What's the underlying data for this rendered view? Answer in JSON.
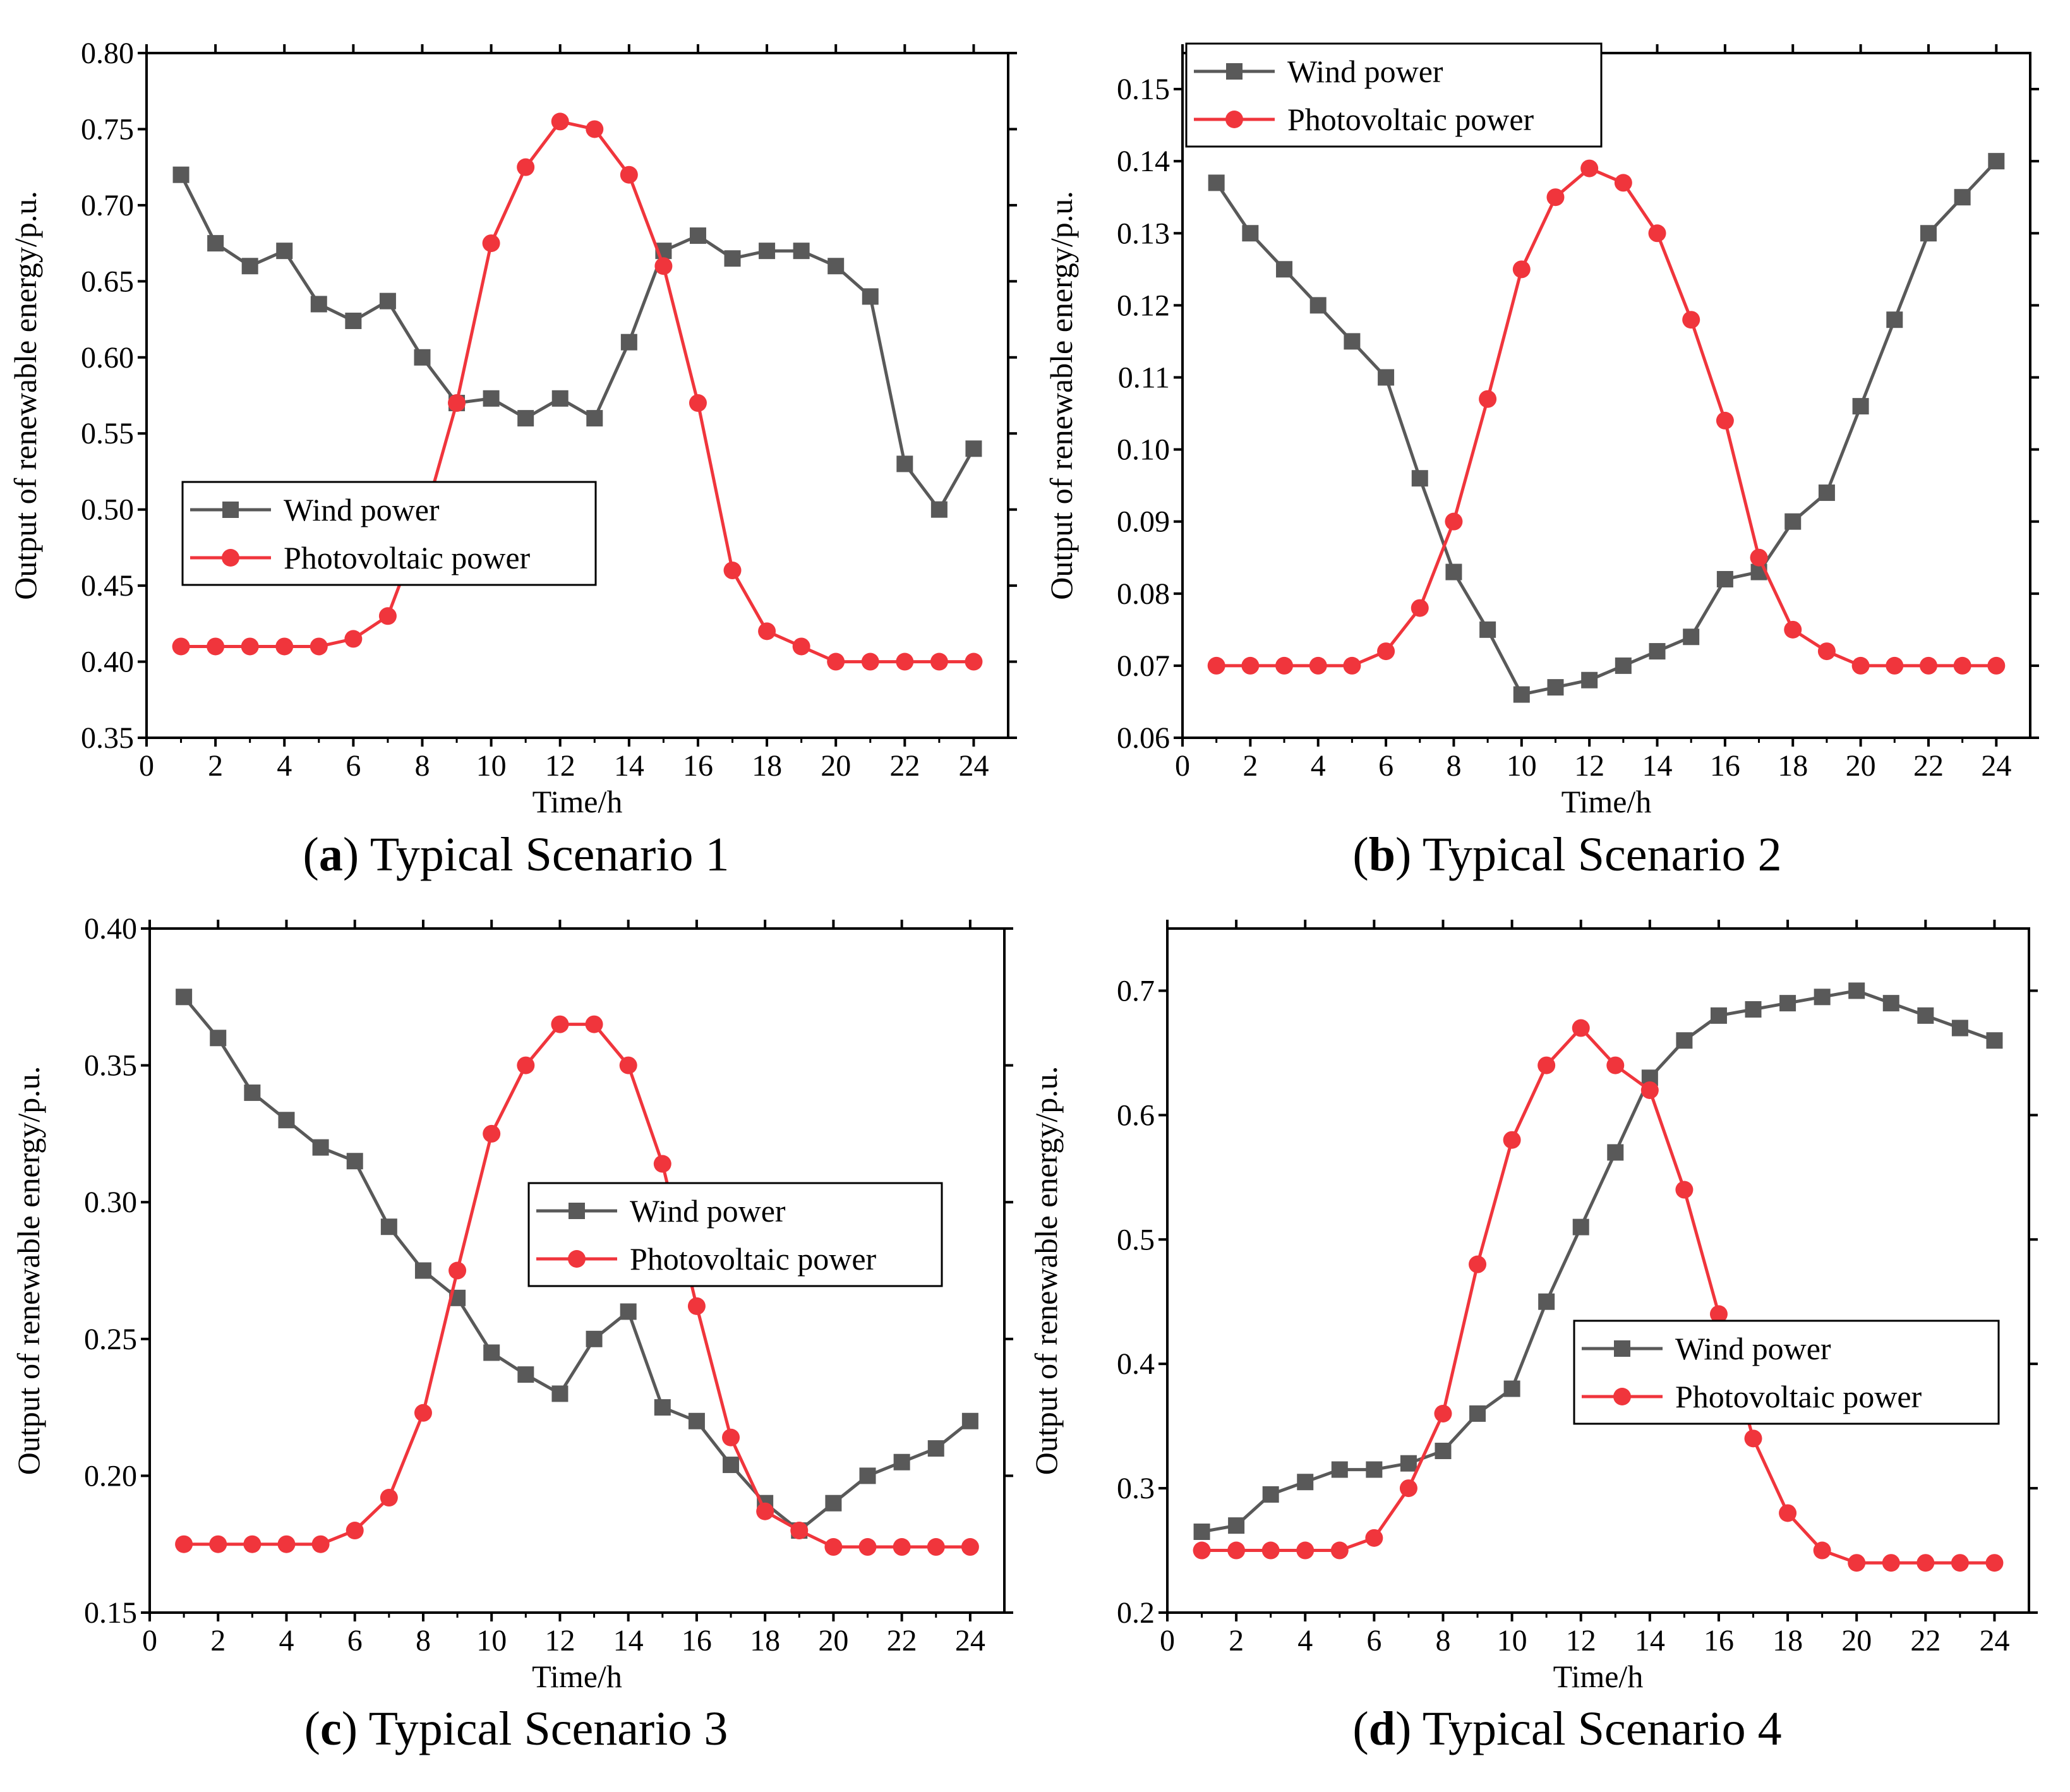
{
  "colors": {
    "wind": "#595959",
    "pv": "#f0353c",
    "axis": "#000000"
  },
  "chart_data": [
    {
      "type": "line",
      "caption_letter": "a",
      "caption_text": " Typical Scenario 1",
      "xlabel": "Time/h",
      "ylabel": "Output of renewable energy/p.u.",
      "xlim": [
        0,
        25
      ],
      "ylim": [
        0.35,
        0.8
      ],
      "xticks": [
        0,
        2,
        4,
        6,
        8,
        10,
        12,
        14,
        16,
        18,
        20,
        22,
        24
      ],
      "yticks": [
        "0.35",
        "0.40",
        "0.45",
        "0.50",
        "0.55",
        "0.60",
        "0.65",
        "0.70",
        "0.75",
        "0.80"
      ],
      "legend_position": "middle-left",
      "x": [
        1,
        2,
        3,
        4,
        5,
        6,
        7,
        8,
        9,
        10,
        11,
        12,
        13,
        14,
        15,
        16,
        17,
        18,
        19,
        20,
        21,
        22,
        23,
        24
      ],
      "series": [
        {
          "name": "Wind power",
          "color": "#595959",
          "marker": "square",
          "values": [
            0.72,
            0.675,
            0.66,
            0.67,
            0.635,
            0.624,
            0.637,
            0.6,
            0.57,
            0.573,
            0.56,
            0.573,
            0.56,
            0.61,
            0.67,
            0.68,
            0.665,
            0.67,
            0.67,
            0.66,
            0.64,
            0.53,
            0.5,
            0.54
          ]
        },
        {
          "name": "Photovoltaic power",
          "color": "#f0353c",
          "marker": "circle",
          "values": [
            0.41,
            0.41,
            0.41,
            0.41,
            0.41,
            0.415,
            0.43,
            0.49,
            0.57,
            0.675,
            0.725,
            0.755,
            0.75,
            0.72,
            0.66,
            0.57,
            0.46,
            0.42,
            0.41,
            0.4,
            0.4,
            0.4,
            0.4,
            0.4
          ]
        }
      ]
    },
    {
      "type": "line",
      "caption_letter": "b",
      "caption_text": " Typical Scenario 2",
      "xlabel": "Time/h",
      "ylabel": "Output of renewable energy/p.u.",
      "xlim": [
        0,
        25
      ],
      "ylim": [
        0.06,
        0.155
      ],
      "xticks": [
        0,
        2,
        4,
        6,
        8,
        10,
        12,
        14,
        16,
        18,
        20,
        22,
        24
      ],
      "yticks": [
        "0.06",
        "0.07",
        "0.08",
        "0.09",
        "0.10",
        "0.11",
        "0.12",
        "0.13",
        "0.14",
        "0.15"
      ],
      "legend_position": "top-left",
      "x": [
        1,
        2,
        3,
        4,
        5,
        6,
        7,
        8,
        9,
        10,
        11,
        12,
        13,
        14,
        15,
        16,
        17,
        18,
        19,
        20,
        21,
        22,
        23,
        24
      ],
      "series": [
        {
          "name": "Wind power",
          "color": "#595959",
          "marker": "square",
          "values": [
            0.137,
            0.13,
            0.125,
            0.12,
            0.115,
            0.11,
            0.096,
            0.083,
            0.075,
            0.066,
            0.067,
            0.068,
            0.07,
            0.072,
            0.074,
            0.082,
            0.083,
            0.09,
            0.094,
            0.106,
            0.118,
            0.13,
            0.135,
            0.14
          ]
        },
        {
          "name": "Photovoltaic power",
          "color": "#f0353c",
          "marker": "circle",
          "values": [
            0.07,
            0.07,
            0.07,
            0.07,
            0.07,
            0.072,
            0.078,
            0.09,
            0.107,
            0.125,
            0.135,
            0.139,
            0.137,
            0.13,
            0.118,
            0.104,
            0.085,
            0.075,
            0.072,
            0.07,
            0.07,
            0.07,
            0.07,
            0.07
          ]
        }
      ]
    },
    {
      "type": "line",
      "caption_letter": "c",
      "caption_text": " Typical Scenario 3",
      "xlabel": "Time/h",
      "ylabel": "Output of renewable energy/p.u.",
      "xlim": [
        0,
        25
      ],
      "ylim": [
        0.15,
        0.4
      ],
      "xticks": [
        0,
        2,
        4,
        6,
        8,
        10,
        12,
        14,
        16,
        18,
        20,
        22,
        24
      ],
      "yticks": [
        "0.15",
        "0.20",
        "0.25",
        "0.30",
        "0.35",
        "0.40"
      ],
      "legend_position": "center-right",
      "x": [
        1,
        2,
        3,
        4,
        5,
        6,
        7,
        8,
        9,
        10,
        11,
        12,
        13,
        14,
        15,
        16,
        17,
        18,
        19,
        20,
        21,
        22,
        23,
        24
      ],
      "series": [
        {
          "name": "Wind power",
          "color": "#595959",
          "marker": "square",
          "values": [
            0.375,
            0.36,
            0.34,
            0.33,
            0.32,
            0.315,
            0.291,
            0.275,
            0.265,
            0.245,
            0.237,
            0.23,
            0.25,
            0.26,
            0.225,
            0.22,
            0.204,
            0.19,
            0.18,
            0.19,
            0.2,
            0.205,
            0.21,
            0.22
          ]
        },
        {
          "name": "Photovoltaic power",
          "color": "#f0353c",
          "marker": "circle",
          "values": [
            0.175,
            0.175,
            0.175,
            0.175,
            0.175,
            0.18,
            0.192,
            0.223,
            0.275,
            0.325,
            0.35,
            0.365,
            0.365,
            0.35,
            0.314,
            0.262,
            0.214,
            0.187,
            0.18,
            0.174,
            0.174,
            0.174,
            0.174,
            0.174
          ]
        }
      ]
    },
    {
      "type": "line",
      "caption_letter": "d",
      "caption_text": " Typical Scenario 4",
      "xlabel": "Time/h",
      "ylabel": "Output of renewable energy/p.u.",
      "xlim": [
        0,
        25
      ],
      "ylim": [
        0.2,
        0.75
      ],
      "xticks": [
        0,
        2,
        4,
        6,
        8,
        10,
        12,
        14,
        16,
        18,
        20,
        22,
        24
      ],
      "yticks": [
        "0.2",
        "0.3",
        "0.4",
        "0.5",
        "0.6",
        "0.7"
      ],
      "legend_position": "lower-right",
      "x": [
        1,
        2,
        3,
        4,
        5,
        6,
        7,
        8,
        9,
        10,
        11,
        12,
        13,
        14,
        15,
        16,
        17,
        18,
        19,
        20,
        21,
        22,
        23,
        24
      ],
      "series": [
        {
          "name": "Wind power",
          "color": "#595959",
          "marker": "square",
          "values": [
            0.265,
            0.27,
            0.295,
            0.305,
            0.315,
            0.315,
            0.32,
            0.33,
            0.36,
            0.38,
            0.45,
            0.51,
            0.57,
            0.63,
            0.66,
            0.68,
            0.685,
            0.69,
            0.695,
            0.7,
            0.69,
            0.68,
            0.67,
            0.66
          ]
        },
        {
          "name": "Photovoltaic power",
          "color": "#f0353c",
          "marker": "circle",
          "values": [
            0.25,
            0.25,
            0.25,
            0.25,
            0.25,
            0.26,
            0.3,
            0.36,
            0.48,
            0.58,
            0.64,
            0.67,
            0.64,
            0.62,
            0.54,
            0.44,
            0.34,
            0.28,
            0.25,
            0.24,
            0.24,
            0.24,
            0.24,
            0.24
          ]
        }
      ]
    }
  ]
}
